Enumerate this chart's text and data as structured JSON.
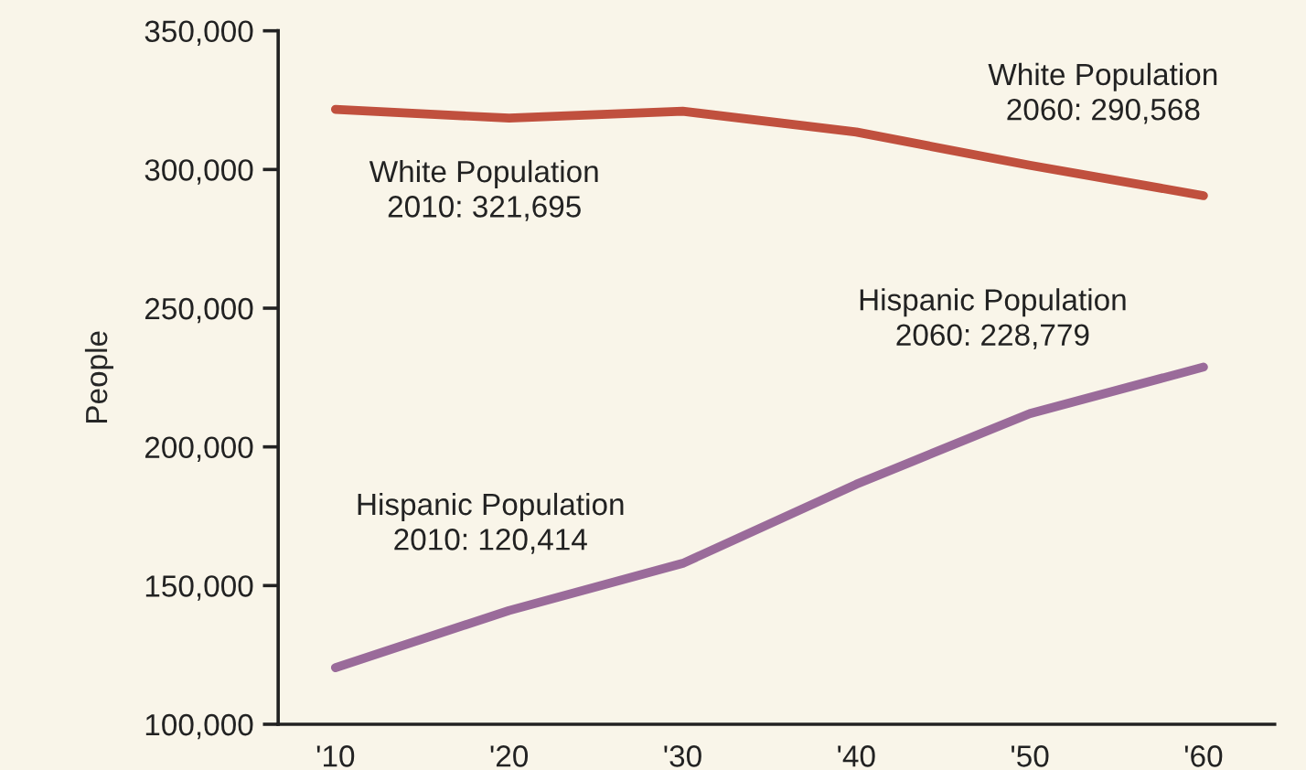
{
  "chart_data": {
    "type": "line",
    "ylabel": "People",
    "categories": [
      "'10",
      "'20",
      "'30",
      "'40",
      "'50",
      "'60"
    ],
    "series": [
      {
        "color": "#c0503e",
        "values": [
          321695,
          318500,
          321000,
          313500,
          301500,
          290568
        ]
      },
      {
        "color": "#9a6b9a",
        "values": [
          120414,
          141000,
          158000,
          186500,
          212000,
          228779
        ]
      }
    ],
    "ylim": [
      100000,
      350000
    ],
    "yticks": [
      {
        "value": 100000,
        "label": "100,000"
      },
      {
        "value": 150000,
        "label": "150,000"
      },
      {
        "value": 200000,
        "label": "200,000"
      },
      {
        "value": 250000,
        "label": "250,000"
      },
      {
        "value": 300000,
        "label": "300,000"
      },
      {
        "value": 350000,
        "label": "350,000"
      }
    ],
    "annotations": [
      "White Population\n2010: 321,695",
      "White Population\n2060: 290,568",
      "Hispanic Population\n2060: 228,779",
      "Hispanic Population\n2010: 120,414"
    ],
    "grid": false,
    "legend": false,
    "marker": "none",
    "line_style": "solid"
  }
}
